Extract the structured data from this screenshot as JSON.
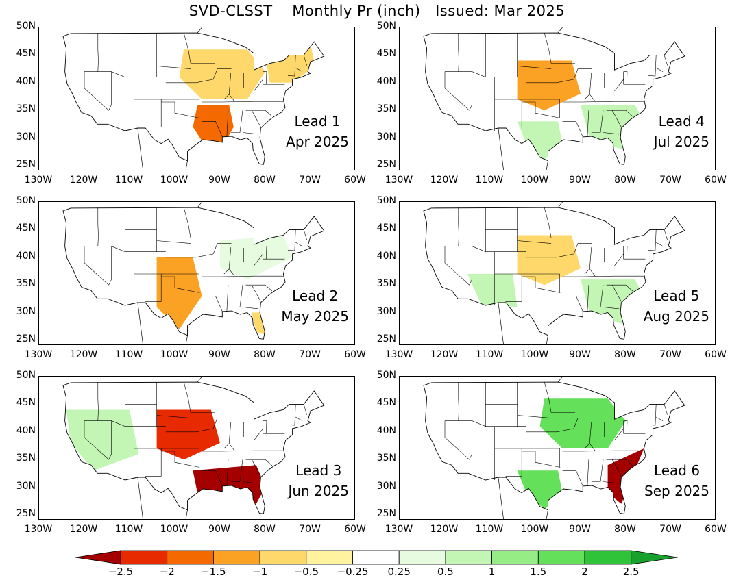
{
  "title": "SVD-CLSST    Monthly Pr (inch)   Issued: Mar 2025",
  "panels": [
    {
      "lead": "Lead 1",
      "month": "Apr 2025",
      "anomaly_areas": [
        {
          "region": "lower-mississippi",
          "level": -1.5
        },
        {
          "region": "midwest",
          "level": -0.5
        },
        {
          "region": "northeast",
          "level": -0.5
        }
      ]
    },
    {
      "lead": "Lead 4",
      "month": "Jul 2025",
      "anomaly_areas": [
        {
          "region": "central-plains",
          "level": -1
        },
        {
          "region": "southeast",
          "level": 0.5
        },
        {
          "region": "texas",
          "level": 0.5
        }
      ]
    },
    {
      "lead": "Lead 2",
      "month": "May 2025",
      "anomaly_areas": [
        {
          "region": "southern-plains",
          "level": -1
        },
        {
          "region": "ohio-valley",
          "level": 0.25
        },
        {
          "region": "florida",
          "level": -0.5
        }
      ]
    },
    {
      "lead": "Lead 5",
      "month": "Aug 2025",
      "anomaly_areas": [
        {
          "region": "southeast",
          "level": 0.5
        },
        {
          "region": "southwest",
          "level": 0.5
        },
        {
          "region": "central-plains",
          "level": -0.5
        }
      ]
    },
    {
      "lead": "Lead 3",
      "month": "Jun 2025",
      "anomaly_areas": [
        {
          "region": "gulf-coast",
          "level": -2.5
        },
        {
          "region": "central-plains",
          "level": -2
        },
        {
          "region": "west",
          "level": 0.5
        }
      ]
    },
    {
      "lead": "Lead 6",
      "month": "Sep 2025",
      "anomaly_areas": [
        {
          "region": "midwest",
          "level": 1.5
        },
        {
          "region": "southeast-coast",
          "level": -2.5
        },
        {
          "region": "texas",
          "level": 1.5
        }
      ]
    }
  ],
  "lat_ticks": [
    "25N",
    "30N",
    "35N",
    "40N",
    "45N",
    "50N"
  ],
  "lon_ticks": [
    "130W",
    "120W",
    "110W",
    "100W",
    "90W",
    "80W",
    "70W",
    "60W"
  ],
  "colorbar": {
    "labels": [
      "−2.5",
      "−2",
      "−1.5",
      "−1",
      "−0.5",
      "−0.25",
      "0.25",
      "0.5",
      "1",
      "1.5",
      "2",
      "2.5"
    ],
    "colors": [
      "#a50000",
      "#e82a00",
      "#f46a00",
      "#fba224",
      "#fed86b",
      "#fff3a0",
      "#ffffff",
      "#e6fbdf",
      "#c3f5b4",
      "#96ed86",
      "#64e05a",
      "#2fc33a",
      "#19a12e"
    ]
  }
}
